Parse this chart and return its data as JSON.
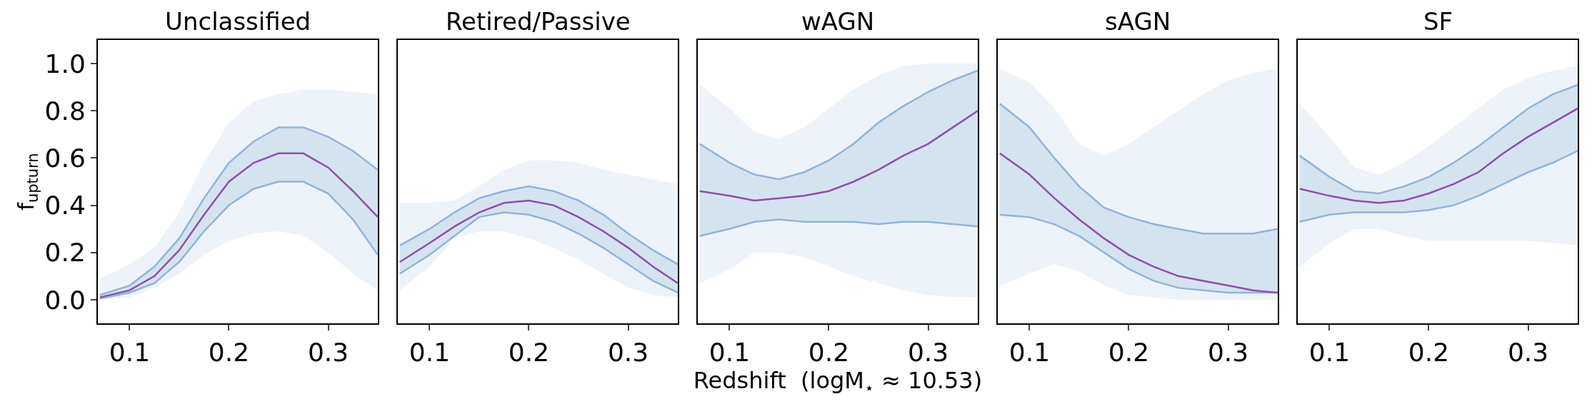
{
  "chart_data": [
    {
      "type": "line",
      "title": "Unclassified",
      "ylabel": "f$_{upturn}$",
      "x": [
        0.07,
        0.1,
        0.125,
        0.15,
        0.175,
        0.2,
        0.225,
        0.25,
        0.275,
        0.3,
        0.325,
        0.35
      ],
      "xlim": [
        0.068,
        0.35
      ],
      "xticks": [
        0.1,
        0.2,
        0.3
      ],
      "ylim": [
        -0.1,
        1.1
      ],
      "yticks": [
        {
          "value": 0,
          "label": "0.0"
        },
        0.2,
        0.4,
        0.6,
        0.8,
        {
          "value": 1,
          "label": "1.0"
        }
      ],
      "series": [
        {
          "type": "area",
          "color": "#edf3f8",
          "values": [
            null,
            null,
            null,
            null,
            null,
            null,
            null,
            null,
            null,
            null,
            null,
            null
          ],
          "lower": [
            0.0,
            0.01,
            0.05,
            0.11,
            0.19,
            0.25,
            0.28,
            0.29,
            0.27,
            0.2,
            0.11,
            0.04
          ],
          "upper": [
            0.09,
            0.15,
            0.22,
            0.37,
            0.58,
            0.75,
            0.84,
            0.87,
            0.89,
            0.89,
            0.88,
            0.87
          ]
        },
        {
          "type": "area",
          "color": "#d5e3ef",
          "values": [
            null,
            null,
            null,
            null,
            null,
            null,
            null,
            null,
            null,
            null,
            null,
            null
          ],
          "lower": [
            0.005,
            0.03,
            0.07,
            0.16,
            0.29,
            0.4,
            0.47,
            0.5,
            0.5,
            0.45,
            0.34,
            0.19
          ],
          "upper": [
            0.02,
            0.06,
            0.14,
            0.26,
            0.43,
            0.58,
            0.67,
            0.73,
            0.73,
            0.69,
            0.63,
            0.55
          ]
        },
        {
          "type": "line",
          "color": "#92b4d8",
          "values": [
            0.005,
            0.03,
            0.07,
            0.16,
            0.29,
            0.4,
            0.47,
            0.5,
            0.5,
            0.45,
            0.34,
            0.19
          ]
        },
        {
          "type": "line",
          "color": "#92b4d8",
          "values": [
            0.02,
            0.06,
            0.14,
            0.26,
            0.43,
            0.58,
            0.67,
            0.73,
            0.73,
            0.69,
            0.63,
            0.55
          ]
        },
        {
          "type": "line",
          "color": "#8e4fa8",
          "values": [
            0.01,
            0.04,
            0.1,
            0.21,
            0.36,
            0.5,
            0.58,
            0.62,
            0.62,
            0.56,
            0.46,
            0.35
          ]
        }
      ]
    },
    {
      "type": "line",
      "title": "Retired/Passive",
      "x": [
        0.07,
        0.1,
        0.125,
        0.15,
        0.175,
        0.2,
        0.225,
        0.25,
        0.275,
        0.3,
        0.325,
        0.35
      ],
      "xlim": [
        0.068,
        0.35
      ],
      "xticks": [
        0.1,
        0.2,
        0.3
      ],
      "ylim": [
        -0.1,
        1.1
      ],
      "tick_labels": "x",
      "series": [
        {
          "type": "area",
          "color": "#edf3f8",
          "values": [
            null,
            null,
            null,
            null,
            null,
            null,
            null,
            null,
            null,
            null,
            null,
            null
          ],
          "lower": [
            0.04,
            0.14,
            0.26,
            0.29,
            0.29,
            0.26,
            0.22,
            0.17,
            0.11,
            0.05,
            0.02,
            0.01
          ],
          "upper": [
            0.41,
            0.41,
            0.42,
            0.48,
            0.55,
            0.59,
            0.59,
            0.58,
            0.55,
            0.53,
            0.51,
            0.49
          ]
        },
        {
          "type": "area",
          "color": "#d5e3ef",
          "values": [
            null,
            null,
            null,
            null,
            null,
            null,
            null,
            null,
            null,
            null,
            null,
            null
          ],
          "lower": [
            0.11,
            0.19,
            0.27,
            0.35,
            0.37,
            0.36,
            0.33,
            0.28,
            0.22,
            0.15,
            0.08,
            0.03
          ],
          "upper": [
            0.23,
            0.3,
            0.37,
            0.43,
            0.46,
            0.48,
            0.46,
            0.42,
            0.36,
            0.28,
            0.21,
            0.15
          ]
        },
        {
          "type": "line",
          "color": "#92b4d8",
          "values": [
            0.11,
            0.19,
            0.27,
            0.35,
            0.37,
            0.36,
            0.33,
            0.28,
            0.22,
            0.15,
            0.08,
            0.03
          ]
        },
        {
          "type": "line",
          "color": "#92b4d8",
          "values": [
            0.23,
            0.3,
            0.37,
            0.43,
            0.46,
            0.48,
            0.46,
            0.42,
            0.36,
            0.28,
            0.21,
            0.15
          ]
        },
        {
          "type": "line",
          "color": "#8e4fa8",
          "values": [
            0.16,
            0.24,
            0.31,
            0.37,
            0.41,
            0.42,
            0.4,
            0.35,
            0.29,
            0.22,
            0.14,
            0.07
          ]
        }
      ]
    },
    {
      "type": "line",
      "title": "wAGN",
      "xlabel": "Redshift  (logM$_{⋆}$ ≈ 10.53)",
      "x": [
        0.07,
        0.1,
        0.125,
        0.15,
        0.175,
        0.2,
        0.225,
        0.25,
        0.275,
        0.3,
        0.325,
        0.35
      ],
      "xlim": [
        0.068,
        0.35
      ],
      "xticks": [
        0.1,
        0.2,
        0.3
      ],
      "ylim": [
        -0.1,
        1.1
      ],
      "tick_labels": "x",
      "series": [
        {
          "type": "area",
          "color": "#edf3f8",
          "values": [
            null,
            null,
            null,
            null,
            null,
            null,
            null,
            null,
            null,
            null,
            null,
            null
          ],
          "lower": [
            0.07,
            0.13,
            0.2,
            0.2,
            0.18,
            0.14,
            0.1,
            0.07,
            0.04,
            0.02,
            0.01,
            0.01
          ],
          "upper": [
            0.91,
            0.81,
            0.71,
            0.68,
            0.73,
            0.81,
            0.89,
            0.95,
            0.99,
            1.0,
            1.0,
            1.0
          ]
        },
        {
          "type": "area",
          "color": "#d5e3ef",
          "values": [
            null,
            null,
            null,
            null,
            null,
            null,
            null,
            null,
            null,
            null,
            null,
            null
          ],
          "lower": [
            0.27,
            0.3,
            0.33,
            0.34,
            0.33,
            0.33,
            0.33,
            0.32,
            0.33,
            0.33,
            0.32,
            0.31
          ],
          "upper": [
            0.66,
            0.58,
            0.53,
            0.51,
            0.54,
            0.59,
            0.66,
            0.75,
            0.82,
            0.88,
            0.93,
            0.97
          ]
        },
        {
          "type": "line",
          "color": "#92b4d8",
          "values": [
            0.27,
            0.3,
            0.33,
            0.34,
            0.33,
            0.33,
            0.33,
            0.32,
            0.33,
            0.33,
            0.32,
            0.31
          ]
        },
        {
          "type": "line",
          "color": "#92b4d8",
          "values": [
            0.66,
            0.58,
            0.53,
            0.51,
            0.54,
            0.59,
            0.66,
            0.75,
            0.82,
            0.88,
            0.93,
            0.97
          ]
        },
        {
          "type": "line",
          "color": "#8e4fa8",
          "values": [
            0.46,
            0.44,
            0.42,
            0.43,
            0.44,
            0.46,
            0.5,
            0.55,
            0.61,
            0.66,
            0.73,
            0.8
          ]
        }
      ]
    },
    {
      "type": "line",
      "title": "sAGN",
      "x": [
        0.07,
        0.1,
        0.125,
        0.15,
        0.175,
        0.2,
        0.225,
        0.25,
        0.275,
        0.3,
        0.325,
        0.35
      ],
      "xlim": [
        0.068,
        0.35
      ],
      "xticks": [
        0.1,
        0.2,
        0.3
      ],
      "ylim": [
        -0.1,
        1.1
      ],
      "tick_labels": "x",
      "series": [
        {
          "type": "area",
          "color": "#edf3f8",
          "values": [
            null,
            null,
            null,
            null,
            null,
            null,
            null,
            null,
            null,
            null,
            null,
            null
          ],
          "lower": [
            0.06,
            0.11,
            0.15,
            0.12,
            0.06,
            0.02,
            0.01,
            0.0,
            0.0,
            0.0,
            0.0,
            0.0
          ],
          "upper": [
            0.98,
            0.92,
            0.81,
            0.66,
            0.61,
            0.66,
            0.73,
            0.8,
            0.87,
            0.93,
            0.96,
            0.98
          ]
        },
        {
          "type": "area",
          "color": "#d5e3ef",
          "values": [
            null,
            null,
            null,
            null,
            null,
            null,
            null,
            null,
            null,
            null,
            null,
            null
          ],
          "lower": [
            0.36,
            0.35,
            0.32,
            0.27,
            0.2,
            0.13,
            0.08,
            0.05,
            0.04,
            0.03,
            0.03,
            0.03
          ],
          "upper": [
            0.83,
            0.73,
            0.6,
            0.48,
            0.39,
            0.35,
            0.32,
            0.3,
            0.28,
            0.28,
            0.28,
            0.3
          ]
        },
        {
          "type": "line",
          "color": "#92b4d8",
          "values": [
            0.36,
            0.35,
            0.32,
            0.27,
            0.2,
            0.13,
            0.08,
            0.05,
            0.04,
            0.03,
            0.03,
            0.03
          ]
        },
        {
          "type": "line",
          "color": "#92b4d8",
          "values": [
            0.83,
            0.73,
            0.6,
            0.48,
            0.39,
            0.35,
            0.32,
            0.3,
            0.28,
            0.28,
            0.28,
            0.3
          ]
        },
        {
          "type": "line",
          "color": "#8e4fa8",
          "values": [
            0.62,
            0.53,
            0.43,
            0.34,
            0.26,
            0.19,
            0.14,
            0.1,
            0.08,
            0.06,
            0.04,
            0.03
          ]
        }
      ]
    },
    {
      "type": "line",
      "title": "SF",
      "x": [
        0.07,
        0.1,
        0.125,
        0.15,
        0.175,
        0.2,
        0.225,
        0.25,
        0.275,
        0.3,
        0.325,
        0.35
      ],
      "xlim": [
        0.068,
        0.35
      ],
      "xticks": [
        0.1,
        0.2,
        0.3
      ],
      "ylim": [
        -0.1,
        1.1
      ],
      "tick_labels": "x",
      "series": [
        {
          "type": "area",
          "color": "#edf3f8",
          "values": [
            null,
            null,
            null,
            null,
            null,
            null,
            null,
            null,
            null,
            null,
            null,
            null
          ],
          "lower": [
            0.14,
            0.24,
            0.3,
            0.3,
            0.27,
            0.25,
            0.25,
            0.25,
            0.25,
            0.25,
            0.24,
            0.23
          ],
          "upper": [
            0.83,
            0.69,
            0.56,
            0.53,
            0.58,
            0.65,
            0.73,
            0.81,
            0.89,
            0.94,
            0.97,
            0.99
          ]
        },
        {
          "type": "area",
          "color": "#d5e3ef",
          "values": [
            null,
            null,
            null,
            null,
            null,
            null,
            null,
            null,
            null,
            null,
            null,
            null
          ],
          "lower": [
            0.33,
            0.36,
            0.37,
            0.37,
            0.37,
            0.38,
            0.4,
            0.44,
            0.49,
            0.54,
            0.58,
            0.63
          ],
          "upper": [
            0.61,
            0.52,
            0.46,
            0.45,
            0.48,
            0.52,
            0.58,
            0.65,
            0.73,
            0.81,
            0.87,
            0.91
          ]
        },
        {
          "type": "line",
          "color": "#92b4d8",
          "values": [
            0.33,
            0.36,
            0.37,
            0.37,
            0.37,
            0.38,
            0.4,
            0.44,
            0.49,
            0.54,
            0.58,
            0.63
          ]
        },
        {
          "type": "line",
          "color": "#92b4d8",
          "values": [
            0.61,
            0.52,
            0.46,
            0.45,
            0.48,
            0.52,
            0.58,
            0.65,
            0.73,
            0.81,
            0.87,
            0.91
          ]
        },
        {
          "type": "line",
          "color": "#8e4fa8",
          "values": [
            0.47,
            0.44,
            0.42,
            0.41,
            0.42,
            0.45,
            0.49,
            0.54,
            0.62,
            0.69,
            0.75,
            0.81
          ]
        }
      ]
    }
  ]
}
